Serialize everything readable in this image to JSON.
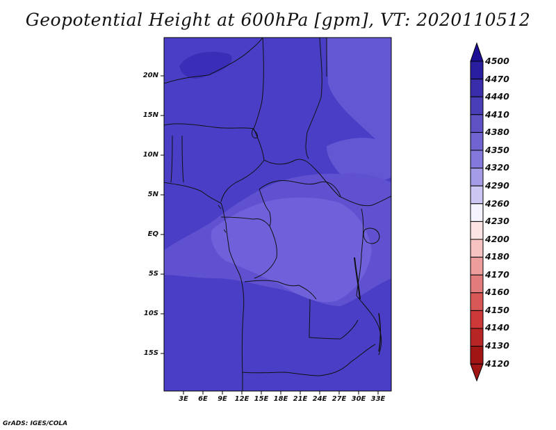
{
  "title": "Geopotential Height at 600hPa [gpm], VT: 2020110512",
  "credit": "GrADS: IGES/COLA",
  "lat_labels": [
    "20N",
    "15N",
    "10N",
    "5N",
    "EQ",
    "5S",
    "10S",
    "15S"
  ],
  "lon_labels": [
    "3E",
    "6E",
    "9E",
    "12E",
    "15E",
    "18E",
    "21E",
    "24E",
    "27E",
    "30E",
    "33E"
  ],
  "colorbar": {
    "levels": [
      "4500",
      "4470",
      "4440",
      "4410",
      "4380",
      "4350",
      "4320",
      "4290",
      "4260",
      "4230",
      "4200",
      "4180",
      "4170",
      "4160",
      "4150",
      "4140",
      "4130",
      "4120"
    ],
    "colors": [
      "#1c0f96",
      "#2a1ea0",
      "#3a2dab",
      "#4a3eb8",
      "#5e52c4",
      "#7064d1",
      "#8378dc",
      "#a59ce8",
      "#ccc6f3",
      "#f5f3ff",
      "#fde4e4",
      "#f7c2c2",
      "#ee9d9d",
      "#e27c7c",
      "#d85858",
      "#cd3838",
      "#b82525",
      "#a21515"
    ]
  },
  "map": {
    "fill_colors": {
      "dark": "#2e1fa0",
      "main": "#4a3ec6",
      "mid": "#5e50d0",
      "light": "#7062dc",
      "lightest": "#7c6fe0"
    }
  }
}
